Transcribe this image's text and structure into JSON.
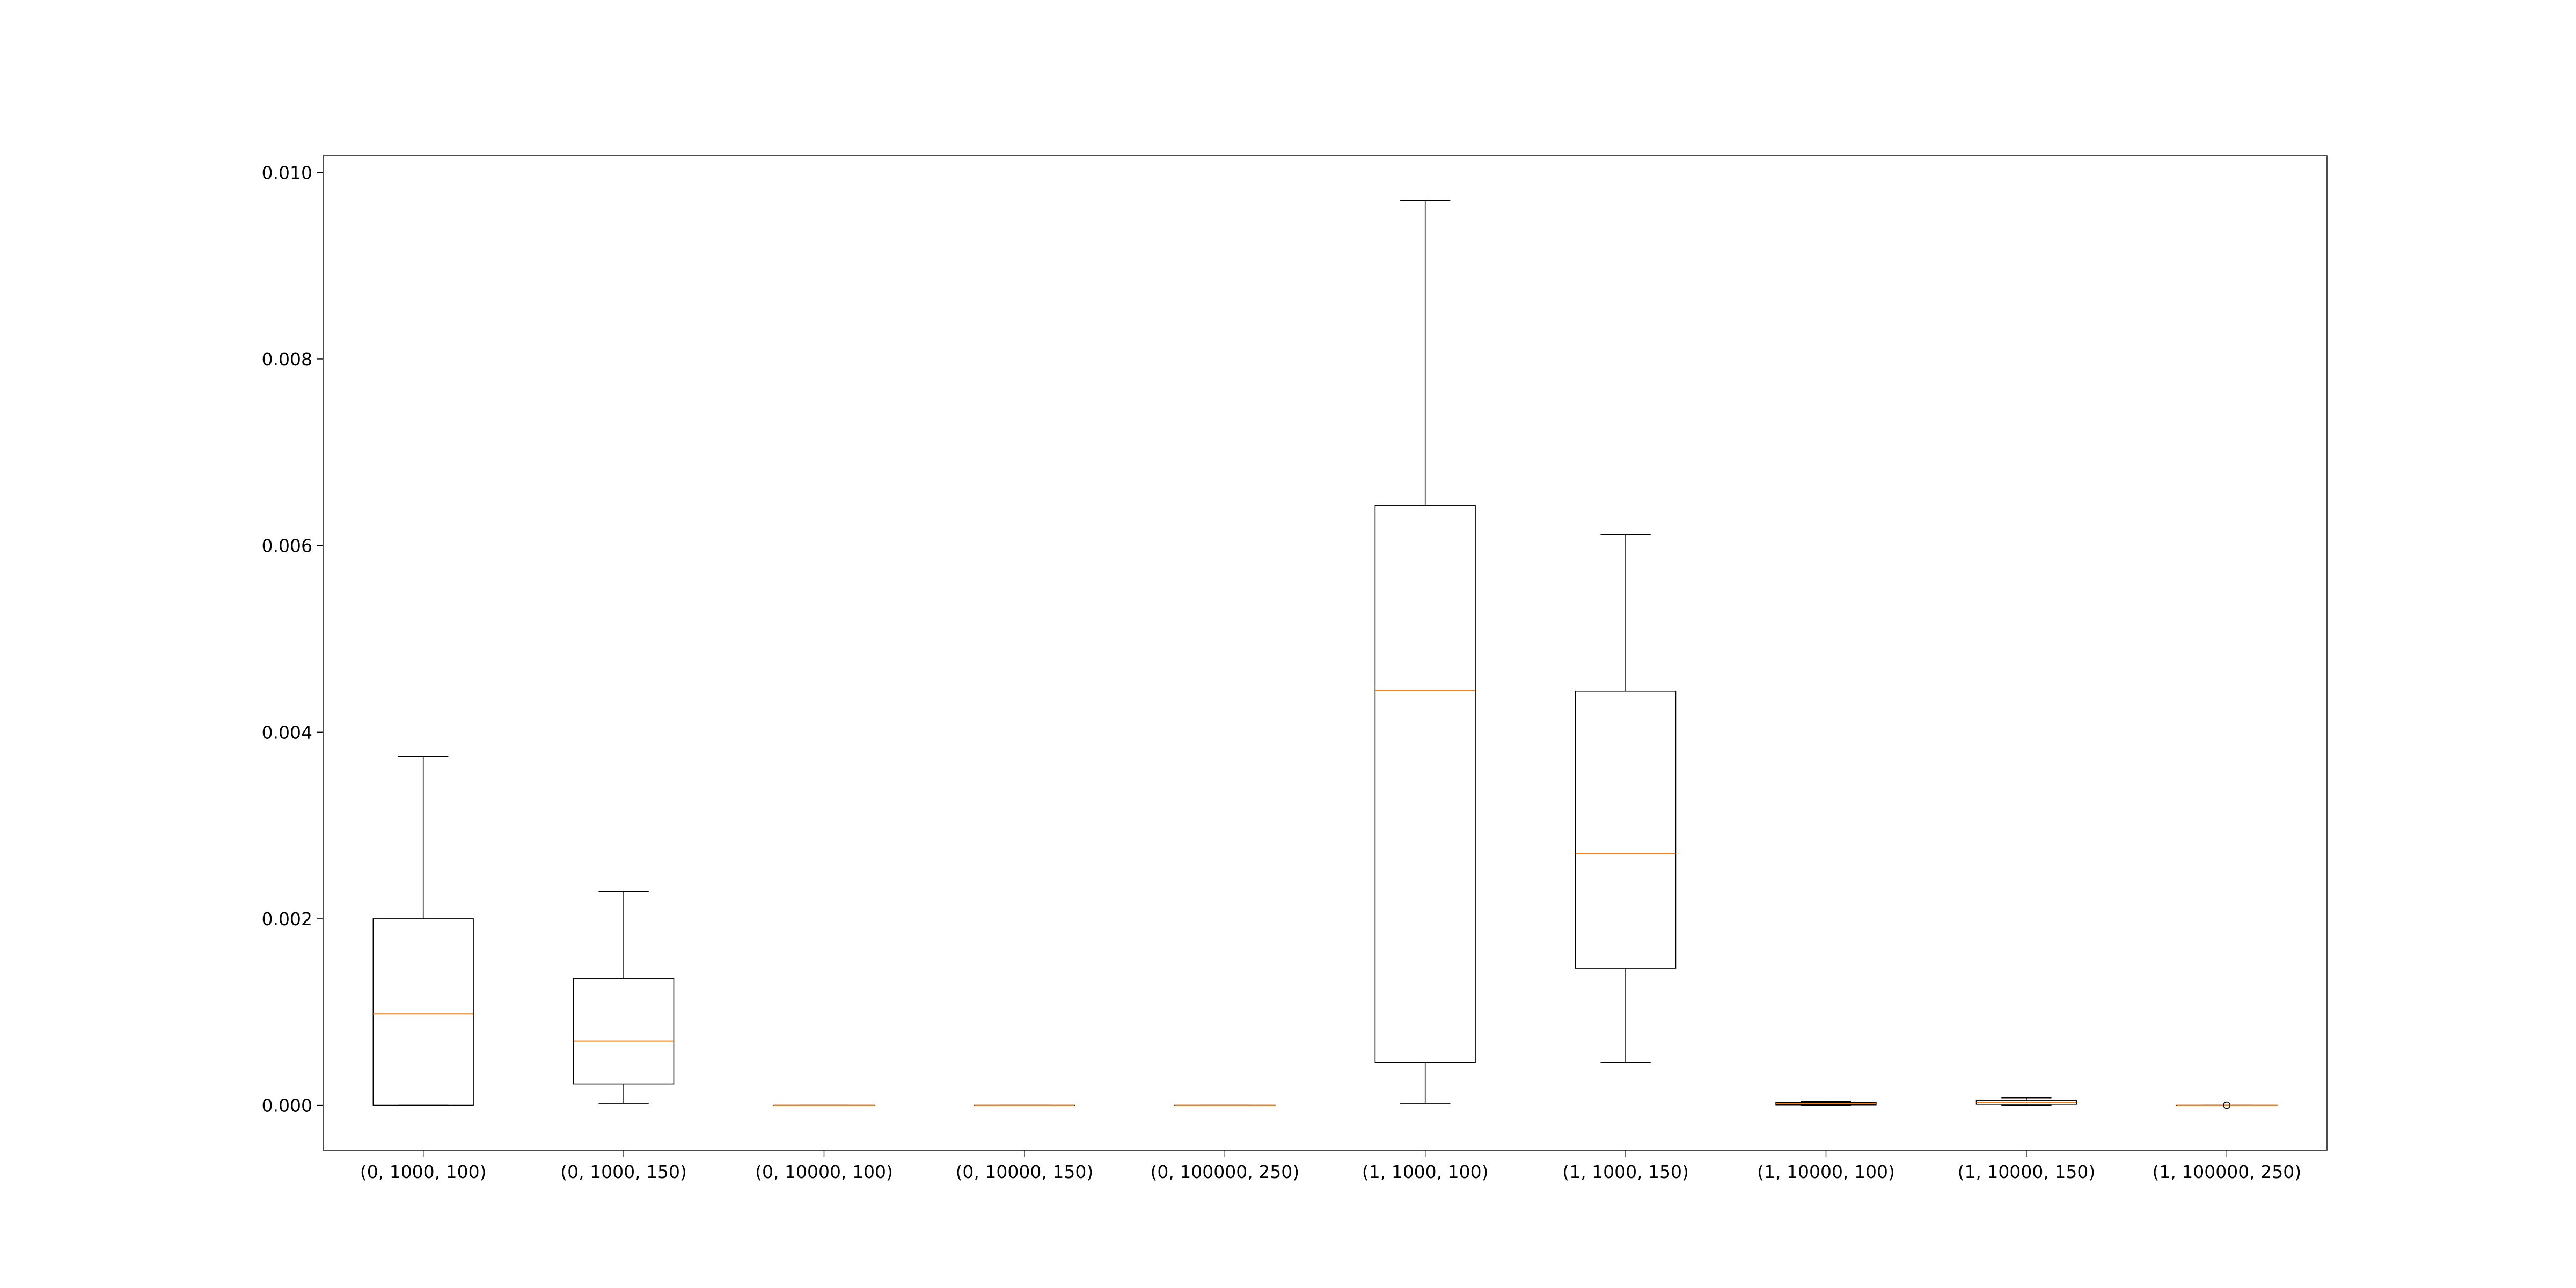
{
  "chart_data": {
    "type": "box",
    "title": "",
    "xlabel": "",
    "ylabel": "",
    "categories": [
      "(0, 1000, 100)",
      "(0, 1000, 150)",
      "(0, 10000, 100)",
      "(0, 10000, 150)",
      "(0, 100000, 250)",
      "(1, 1000, 100)",
      "(1, 1000, 150)",
      "(1, 10000, 100)",
      "(1, 10000, 150)",
      "(1, 100000, 250)"
    ],
    "ylim": [
      -0.00048,
      0.01018
    ],
    "yticks": [
      0.0,
      0.002,
      0.004,
      0.006,
      0.008,
      0.01
    ],
    "ytick_labels": [
      "0.000",
      "0.002",
      "0.004",
      "0.006",
      "0.008",
      "0.010"
    ],
    "grid": false,
    "legend": "none",
    "boxes": [
      {
        "whislo": 0.0,
        "q1": 0.0,
        "med": 0.00098,
        "q3": 0.002,
        "whishi": 0.00374,
        "fliers": []
      },
      {
        "whislo": 2e-05,
        "q1": 0.00023,
        "med": 0.00069,
        "q3": 0.00136,
        "whishi": 0.00229,
        "fliers": []
      },
      {
        "whislo": 0.0,
        "q1": 0.0,
        "med": 0.0,
        "q3": 0.0,
        "whishi": 0.0,
        "fliers": []
      },
      {
        "whislo": 0.0,
        "q1": 0.0,
        "med": 0.0,
        "q3": 0.0,
        "whishi": 0.0,
        "fliers": []
      },
      {
        "whislo": 0.0,
        "q1": 0.0,
        "med": 0.0,
        "q3": 0.0,
        "whishi": 0.0,
        "fliers": []
      },
      {
        "whislo": 2e-05,
        "q1": 0.00046,
        "med": 0.00445,
        "q3": 0.00643,
        "whishi": 0.0097,
        "fliers": []
      },
      {
        "whislo": 0.00046,
        "q1": 0.00147,
        "med": 0.0027,
        "q3": 0.00444,
        "whishi": 0.00612,
        "fliers": []
      },
      {
        "whislo": 0.0,
        "q1": 5e-06,
        "med": 1.5e-05,
        "q3": 3e-05,
        "whishi": 4e-05,
        "fliers": []
      },
      {
        "whislo": 0.0,
        "q1": 1e-05,
        "med": 3e-05,
        "q3": 5e-05,
        "whishi": 8e-05,
        "fliers": []
      },
      {
        "whislo": 0.0,
        "q1": 0.0,
        "med": 0.0,
        "q3": 0.0,
        "whishi": 0.0,
        "fliers": [
          0.0
        ]
      }
    ],
    "colors": {
      "box": "#000000",
      "median": "#ff7f0e",
      "axes": "#000000",
      "background": "#ffffff"
    }
  }
}
